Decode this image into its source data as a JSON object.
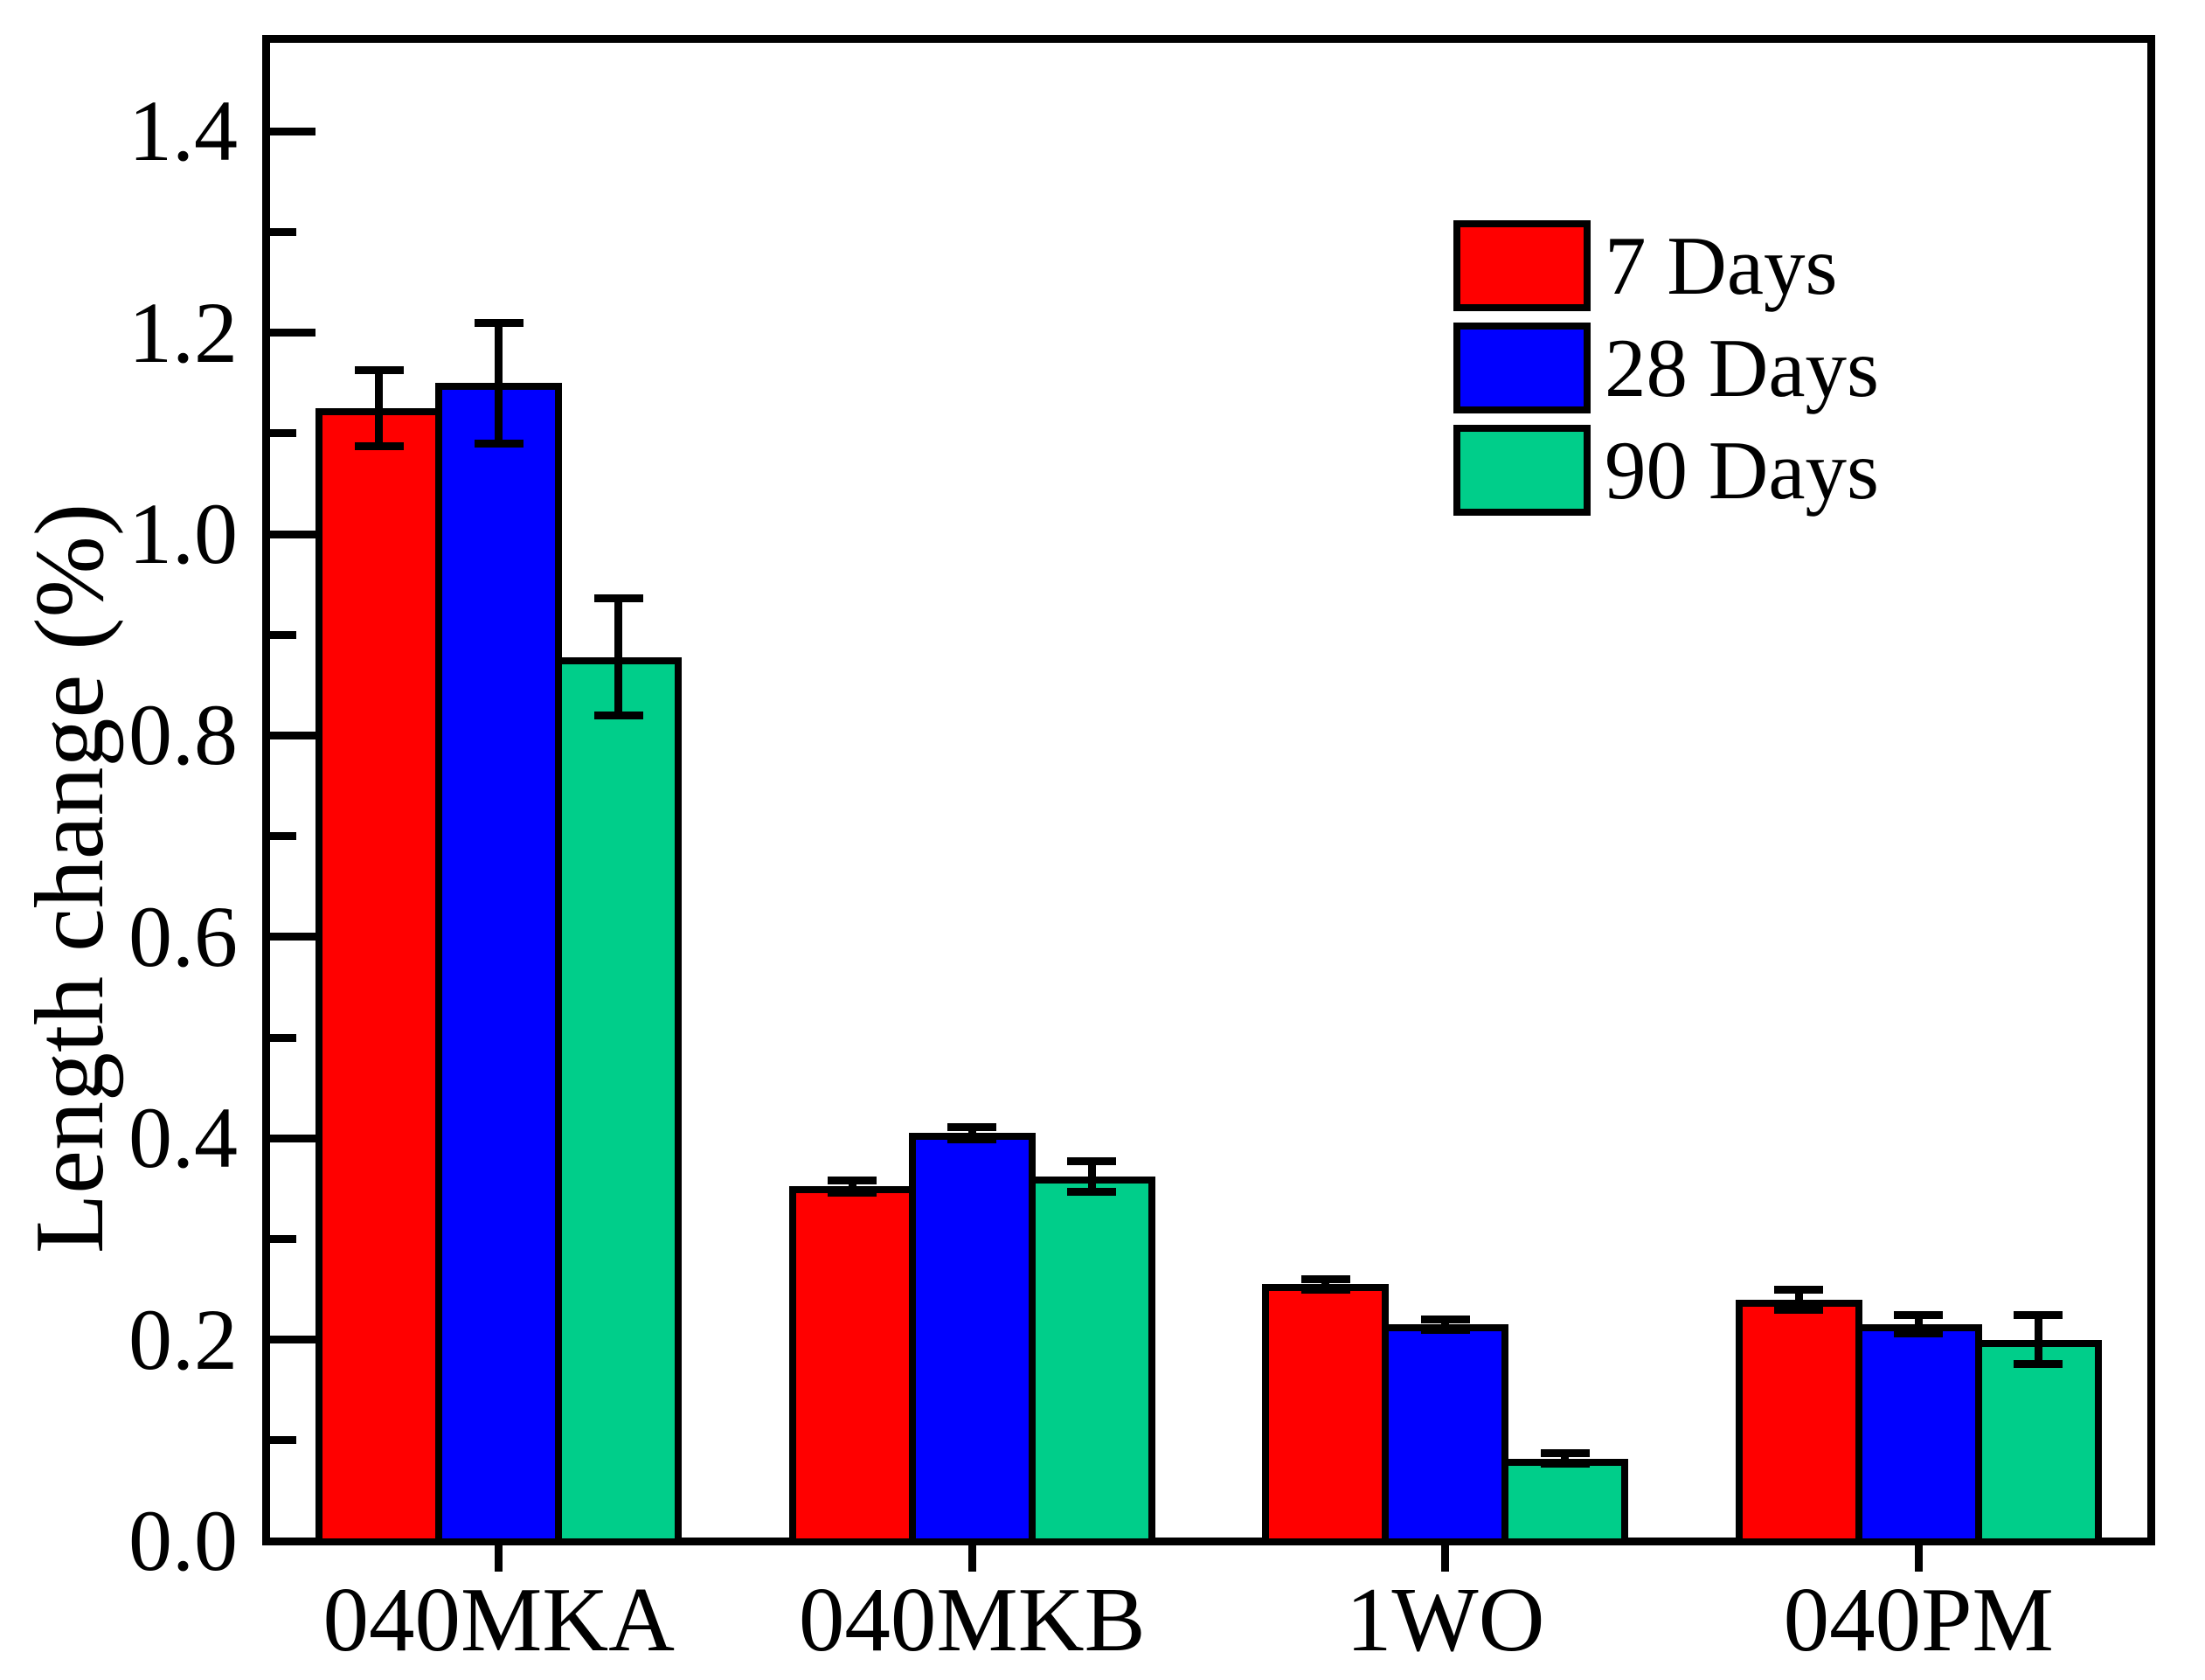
{
  "figure": {
    "background_color": "#FFFFFF",
    "plot_border_color": "#000000"
  },
  "chart_data": {
    "type": "bar",
    "title": "",
    "xlabel": "",
    "ylabel": "Length change (%)",
    "categories": [
      "040MKA",
      "040MKB",
      "1WO",
      "040PM"
    ],
    "series": [
      {
        "name": "7 Days",
        "color": "#FF0000",
        "values": [
          1.125,
          0.352,
          0.255,
          0.24
        ],
        "errors": [
          0.038,
          0.006,
          0.005,
          0.01
        ]
      },
      {
        "name": "28 Days",
        "color": "#0000FF",
        "values": [
          1.15,
          0.405,
          0.215,
          0.215
        ],
        "errors": [
          0.06,
          0.006,
          0.005,
          0.009
        ]
      },
      {
        "name": "90 Days",
        "color": "#00CE8A",
        "values": [
          0.878,
          0.362,
          0.082,
          0.2
        ],
        "errors": [
          0.058,
          0.015,
          0.005,
          0.024
        ]
      }
    ],
    "ylim": [
      0,
      1.5
    ],
    "y_major_ticks": [
      0.0,
      0.2,
      0.4,
      0.6,
      0.8,
      1.0,
      1.2,
      1.4
    ],
    "y_minor_step": 0.1,
    "y_tick_decimals": 1,
    "grid": false,
    "legend_position": "upper right",
    "bar_edge_color": "#000000",
    "error_bar_color": "#000000"
  }
}
